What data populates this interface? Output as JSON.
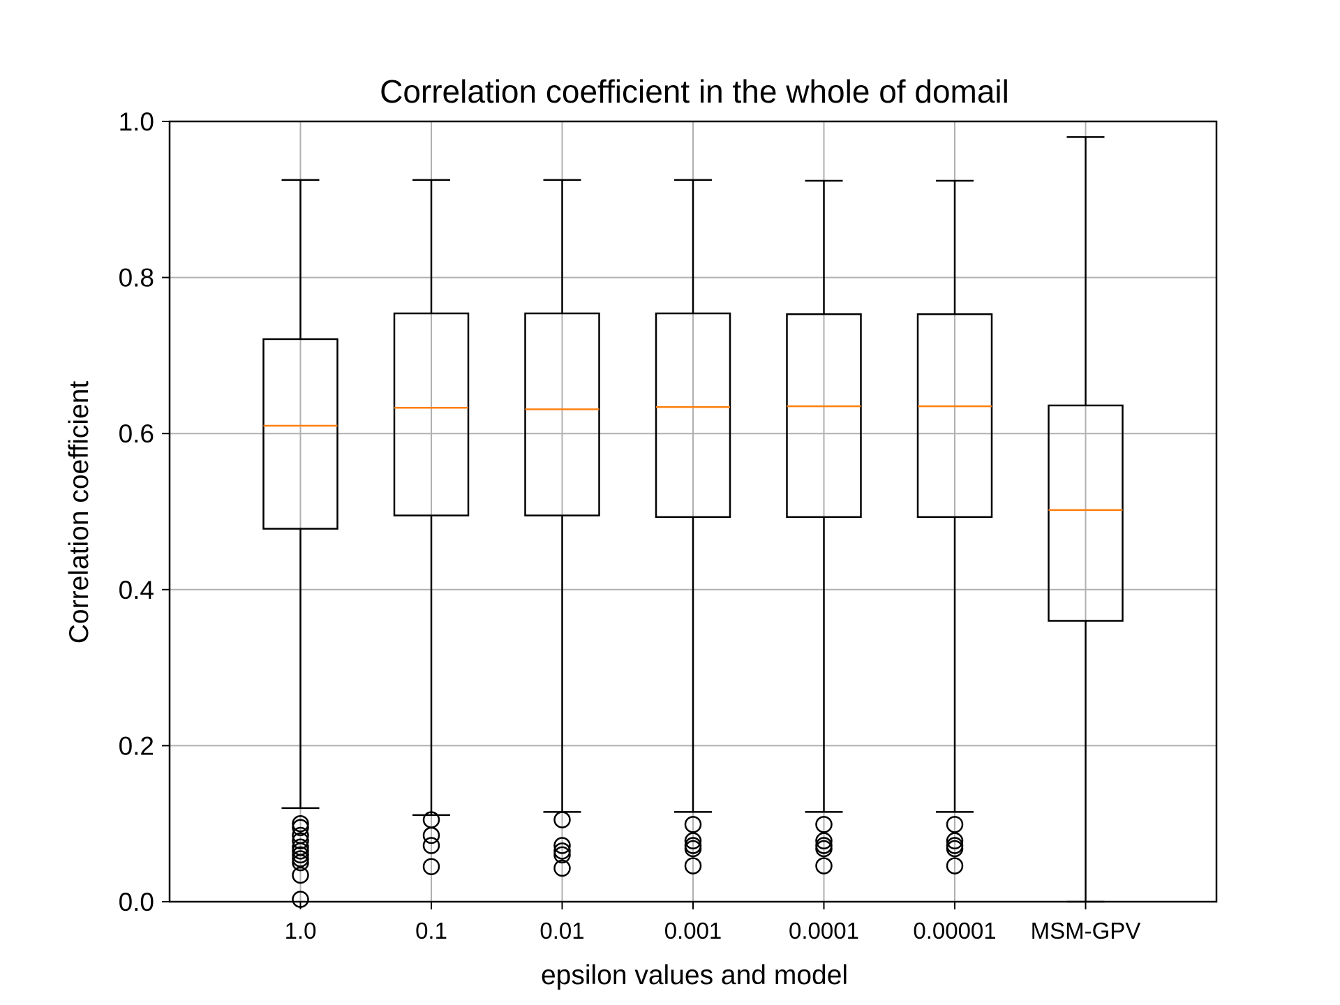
{
  "chart_data": {
    "type": "boxplot",
    "title": "Correlation coefficient in the whole of domail",
    "xlabel": "epsilon values and model",
    "ylabel": "Correlation coefficient",
    "ylim": [
      0.0,
      1.0
    ],
    "yticks": [
      "0.0",
      "0.2",
      "0.4",
      "0.6",
      "0.8",
      "1.0"
    ],
    "grid": true,
    "categories": [
      "1.0",
      "0.1",
      "0.01",
      "0.001",
      "0.0001",
      "0.00001",
      "MSM-GPV"
    ],
    "boxes": [
      {
        "whisker_low": 0.12,
        "q1": 0.478,
        "median": 0.61,
        "q3": 0.721,
        "whisker_high": 0.925,
        "outliers": [
          0.1,
          0.095,
          0.085,
          0.078,
          0.07,
          0.065,
          0.06,
          0.055,
          0.05,
          0.034,
          0.003
        ]
      },
      {
        "whisker_low": 0.111,
        "q1": 0.495,
        "median": 0.633,
        "q3": 0.754,
        "whisker_high": 0.925,
        "outliers": [
          0.105,
          0.085,
          0.072,
          0.045
        ]
      },
      {
        "whisker_low": 0.115,
        "q1": 0.495,
        "median": 0.631,
        "q3": 0.754,
        "whisker_high": 0.925,
        "outliers": [
          0.105,
          0.072,
          0.065,
          0.06,
          0.043
        ]
      },
      {
        "whisker_low": 0.115,
        "q1": 0.493,
        "median": 0.634,
        "q3": 0.754,
        "whisker_high": 0.925,
        "outliers": [
          0.099,
          0.078,
          0.072,
          0.068,
          0.046
        ]
      },
      {
        "whisker_low": 0.115,
        "q1": 0.493,
        "median": 0.635,
        "q3": 0.753,
        "whisker_high": 0.924,
        "outliers": [
          0.099,
          0.078,
          0.072,
          0.068,
          0.046
        ]
      },
      {
        "whisker_low": 0.115,
        "q1": 0.493,
        "median": 0.635,
        "q3": 0.753,
        "whisker_high": 0.924,
        "outliers": [
          0.099,
          0.078,
          0.072,
          0.068,
          0.046
        ]
      },
      {
        "whisker_low": 0.0,
        "q1": 0.36,
        "median": 0.502,
        "q3": 0.636,
        "whisker_high": 0.98,
        "outliers": []
      }
    ],
    "colors": {
      "box": "#000000",
      "median": "#ff7f0e",
      "grid": "#b0b0b0",
      "outlier": "#000000"
    }
  }
}
